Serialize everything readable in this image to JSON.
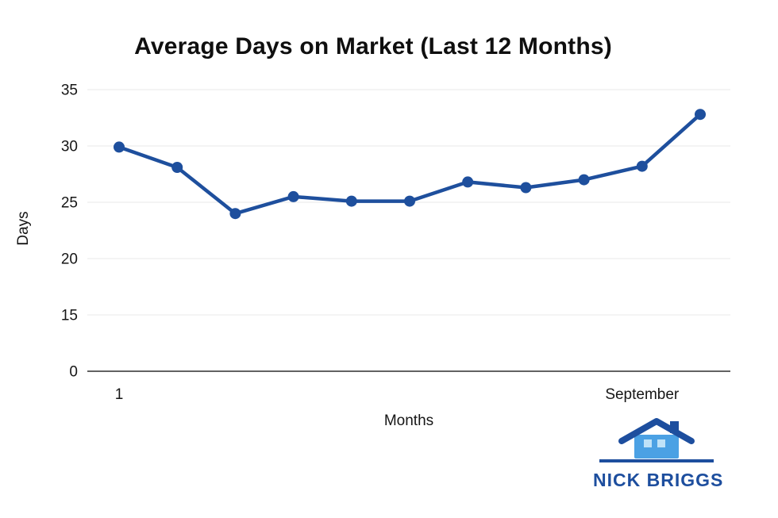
{
  "chart_data": {
    "type": "line",
    "title": "Average Days on Market (Last 12 Months)",
    "xlabel": "Months",
    "ylabel": "Days",
    "y_ticks": [
      0,
      15,
      20,
      25,
      30,
      35
    ],
    "x_ticks": [
      {
        "point": 0,
        "label": "1"
      },
      {
        "point": 9,
        "label": "September"
      }
    ],
    "values": [
      29.9,
      28.1,
      24.0,
      25.5,
      25.1,
      25.1,
      26.8,
      26.3,
      27.0,
      28.2,
      32.8
    ],
    "line_color": "#1e4f9d",
    "point_color": "#1e4f9d",
    "grid": true,
    "legend": "none"
  },
  "logo": {
    "text": "NICK BRIGGS",
    "primary_color": "#1d4e9e",
    "house_color": "#4ba1e4",
    "window_color": "#bfe2f8"
  }
}
